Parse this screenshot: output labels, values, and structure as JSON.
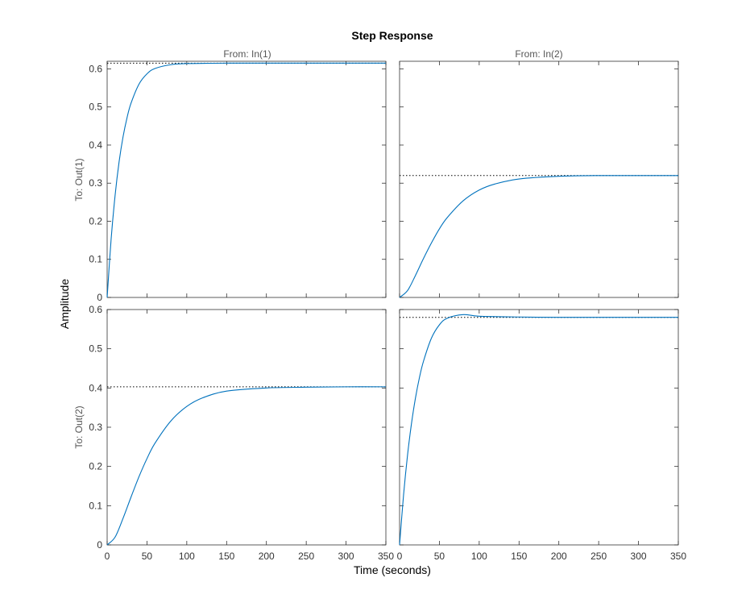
{
  "chart_data": {
    "type": "line",
    "title": "Step Response",
    "xlabel": "Time (seconds)",
    "ylabel": "Amplitude",
    "input_labels": [
      "From: In(1)",
      "From: In(2)"
    ],
    "output_labels": [
      "To: Out(1)",
      "To: Out(2)"
    ],
    "xlim": [
      0,
      350
    ],
    "xticks": [
      0,
      50,
      100,
      150,
      200,
      250,
      300,
      350
    ],
    "xtick_labels": [
      "0",
      "50",
      "100",
      "150",
      "200",
      "250",
      "300",
      "350"
    ],
    "rows": [
      {
        "ylim": [
          0,
          0.62
        ],
        "yticks": [
          0,
          0.1,
          0.2,
          0.3,
          0.4,
          0.5,
          0.6
        ],
        "ytick_labels": [
          "0",
          "0.1",
          "0.2",
          "0.3",
          "0.4",
          "0.5",
          "0.6"
        ]
      },
      {
        "ylim": [
          0,
          0.6
        ],
        "yticks": [
          0,
          0.1,
          0.2,
          0.3,
          0.4,
          0.5,
          0.6
        ],
        "ytick_labels": [
          "0",
          "0.1",
          "0.2",
          "0.3",
          "0.4",
          "0.5",
          "0.6"
        ]
      }
    ],
    "line_color": "#0072BD",
    "steady_state_style": "dotted black",
    "grid": false,
    "series": [
      {
        "output": 1,
        "input": 1,
        "steady_state": 0.615,
        "x": [
          0,
          5,
          10,
          15,
          20,
          25,
          30,
          40,
          50,
          60,
          80,
          100,
          150,
          200,
          250,
          300,
          350
        ],
        "y": [
          0,
          0.153,
          0.268,
          0.356,
          0.422,
          0.472,
          0.51,
          0.56,
          0.587,
          0.601,
          0.611,
          0.614,
          0.615,
          0.615,
          0.615,
          0.615,
          0.615
        ]
      },
      {
        "output": 1,
        "input": 2,
        "steady_state": 0.32,
        "x": [
          0,
          10,
          20,
          30,
          40,
          50,
          60,
          80,
          100,
          120,
          150,
          200,
          250,
          300,
          350
        ],
        "y": [
          0,
          0.018,
          0.058,
          0.102,
          0.143,
          0.18,
          0.21,
          0.254,
          0.282,
          0.298,
          0.311,
          0.318,
          0.32,
          0.32,
          0.32
        ]
      },
      {
        "output": 2,
        "input": 1,
        "steady_state": 0.403,
        "x": [
          0,
          10,
          20,
          30,
          40,
          50,
          60,
          80,
          100,
          120,
          150,
          200,
          250,
          300,
          350
        ],
        "y": [
          0,
          0.02,
          0.068,
          0.122,
          0.174,
          0.22,
          0.259,
          0.316,
          0.353,
          0.375,
          0.392,
          0.4,
          0.402,
          0.403,
          0.403
        ]
      },
      {
        "output": 2,
        "input": 2,
        "steady_state": 0.58,
        "x": [
          0,
          5,
          10,
          15,
          20,
          25,
          30,
          40,
          50,
          60,
          80,
          100,
          150,
          200,
          250,
          300,
          350
        ],
        "y": [
          0,
          0.127,
          0.229,
          0.31,
          0.375,
          0.427,
          0.468,
          0.527,
          0.561,
          0.578,
          0.587,
          0.583,
          0.581,
          0.58,
          0.58,
          0.58,
          0.58
        ]
      }
    ]
  }
}
